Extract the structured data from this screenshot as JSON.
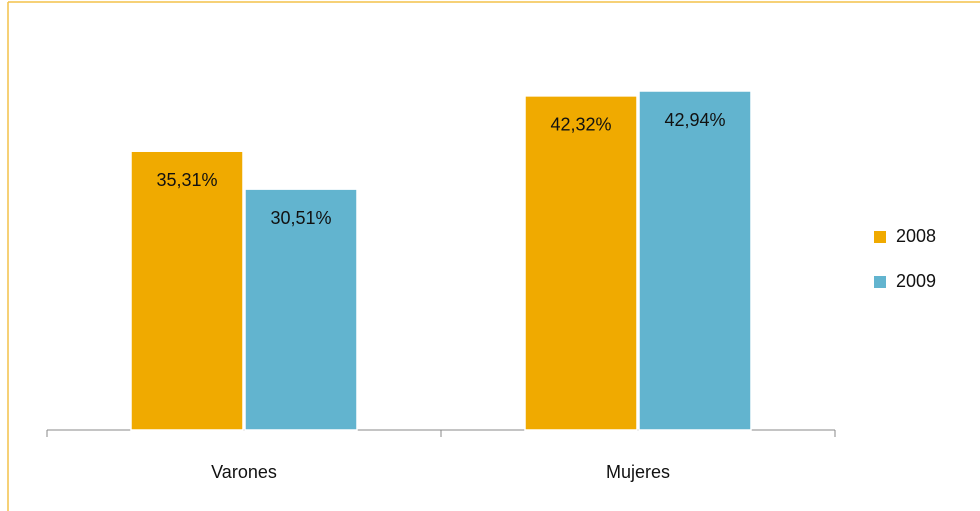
{
  "chart_data": {
    "type": "bar",
    "categories": [
      "Varones",
      "Mujeres"
    ],
    "series": [
      {
        "name": "2008",
        "color": "#f0aa00",
        "values": [
          35.31,
          42.32
        ],
        "value_labels": [
          "35,31%",
          "42,32%"
        ]
      },
      {
        "name": "2009",
        "color": "#62b4cf",
        "values": [
          30.51,
          42.94
        ],
        "value_labels": [
          "30,51%",
          "42,94%"
        ]
      }
    ],
    "legend": "right"
  }
}
